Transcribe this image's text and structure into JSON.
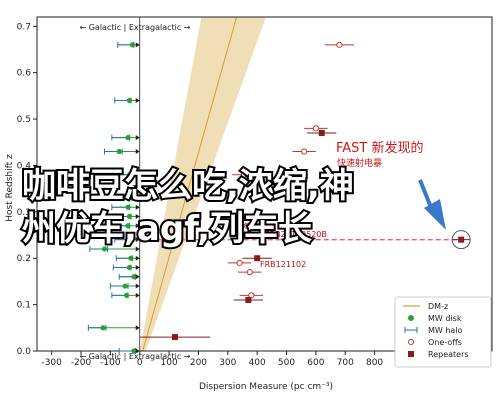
{
  "chart_data": {
    "type": "scatter",
    "xlabel": "Dispersion Measure (pc cm⁻³)",
    "ylabel": "Host Redshift z",
    "xlim": [
      -350,
      1200
    ],
    "ylim": [
      0,
      0.72
    ],
    "x_ticks": [
      -300,
      -200,
      -100,
      0,
      100,
      200,
      300,
      400,
      500,
      600,
      700,
      800,
      900,
      1000,
      1100
    ],
    "y_ticks": [
      0.0,
      0.1,
      0.2,
      0.3,
      0.4,
      0.5,
      0.6,
      0.7
    ],
    "grid": false,
    "banner_top": "← Galactic | Extragalactic →",
    "banner_bottom": "← Galactic | Extragalactic →",
    "legend": {
      "placement": "bottom-right",
      "entries": [
        "DM-z",
        "MW disk",
        "MW halo",
        "One-offs",
        "Repeaters"
      ]
    },
    "dmz_band": {
      "color": "#f5d9a0"
    },
    "mw_points": [
      {
        "z": 0.66,
        "disk": -25,
        "halo_lo": -75,
        "halo_hi": -20
      },
      {
        "z": 0.54,
        "disk": -35,
        "halo_lo": -85,
        "halo_hi": -30
      },
      {
        "z": 0.46,
        "disk": -40,
        "halo_lo": -95,
        "halo_hi": -35
      },
      {
        "z": 0.43,
        "disk": -70,
        "halo_lo": -120,
        "halo_hi": -60
      },
      {
        "z": 0.38,
        "disk": -35,
        "halo_lo": -90,
        "halo_hi": -30
      },
      {
        "z": 0.33,
        "disk": -30,
        "halo_lo": -80,
        "halo_hi": -25
      },
      {
        "z": 0.31,
        "disk": -40,
        "halo_lo": -95,
        "halo_hi": -35
      },
      {
        "z": 0.29,
        "disk": -35,
        "halo_lo": -90,
        "halo_hi": -30
      },
      {
        "z": 0.27,
        "disk": -40,
        "halo_lo": -95,
        "halo_hi": -35
      },
      {
        "z": 0.24,
        "disk": -30,
        "halo_lo": -85,
        "halo_hi": -25
      },
      {
        "z": 0.22,
        "disk": -120,
        "halo_lo": -170,
        "halo_hi": -110
      },
      {
        "z": 0.2,
        "disk": -30,
        "halo_lo": -80,
        "halo_hi": -25
      },
      {
        "z": 0.18,
        "disk": -35,
        "halo_lo": -90,
        "halo_hi": -30
      },
      {
        "z": 0.16,
        "disk": -20,
        "halo_lo": -70,
        "halo_hi": -15
      },
      {
        "z": 0.14,
        "disk": -50,
        "halo_lo": -100,
        "halo_hi": -40
      },
      {
        "z": 0.12,
        "disk": -45,
        "halo_lo": -95,
        "halo_hi": -40
      },
      {
        "z": 0.05,
        "disk": -125,
        "halo_lo": -175,
        "halo_hi": -115
      },
      {
        "z": 0.0,
        "disk": -20,
        "halo_lo": -70,
        "halo_hi": -15
      }
    ],
    "one_offs": [
      {
        "x": 680,
        "z": 0.66,
        "err": 50
      },
      {
        "x": 600,
        "z": 0.48,
        "err": 40
      },
      {
        "x": 560,
        "z": 0.43,
        "err": 40
      },
      {
        "x": 355,
        "z": 0.38,
        "err": 40
      },
      {
        "x": 345,
        "z": 0.29,
        "err": 40
      },
      {
        "x": 365,
        "z": 0.27,
        "err": 40
      },
      {
        "x": 340,
        "z": 0.19,
        "err": 40
      },
      {
        "x": 375,
        "z": 0.17,
        "err": 40
      },
      {
        "x": 380,
        "z": 0.12,
        "err": 40
      }
    ],
    "repeaters": [
      {
        "x": 620,
        "z": 0.47,
        "err": 50
      },
      {
        "x": 1095,
        "z": 0.24,
        "err": 30
      },
      {
        "x": 400,
        "z": 0.2,
        "err": 50
      },
      {
        "x": 370,
        "z": 0.11,
        "err": 50
      },
      {
        "x": 120,
        "z": 0.03,
        "err": 120
      }
    ],
    "annotations": {
      "fast_line1": "FAST 新发现的",
      "fast_line2": "快速射电暴",
      "frb_label": "FRB121102",
      "frb_label_2": "FRB20190520B"
    },
    "overlay_text": {
      "line1": "咖啡豆怎么吃,浓缩,神",
      "line2": "州优车,agf,列车长"
    },
    "colors": {
      "green": "#2ca02c",
      "halo": "#1f77b4",
      "oneoff": "#c0392b",
      "repeater": "#8b1a1a",
      "dmz": "#d4a030",
      "arrow": "#3a78c8",
      "dash": "#e8569a"
    }
  }
}
